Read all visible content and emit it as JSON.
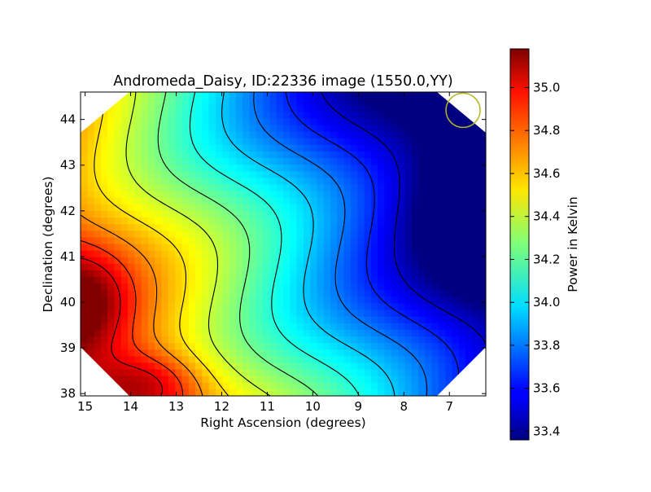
{
  "chart_data": {
    "type": "heatmap",
    "title": "Andromeda_Daisy, ID:22336 image (1550.0,YY)",
    "xlabel": "Right Ascension (degrees)",
    "ylabel": "Declination (degrees)",
    "xlim": [
      15.1,
      6.2
    ],
    "ylim": [
      37.95,
      44.6
    ],
    "x_ticks": [
      "15",
      "14",
      "13",
      "12",
      "11",
      "10",
      "9",
      "8",
      "7"
    ],
    "y_ticks": [
      "38",
      "39",
      "40",
      "41",
      "42",
      "43",
      "44"
    ],
    "colorbar": {
      "label": "Power in Kelvin",
      "range": [
        33.36,
        35.18
      ],
      "ticks": [
        "33.4",
        "33.6",
        "33.8",
        "34.0",
        "34.2",
        "34.4",
        "34.6",
        "34.8",
        "35.0"
      ],
      "colormap": "jet"
    },
    "field": {
      "description_of_gradient": "high in lower-left, low in upper-right",
      "max_region": {
        "ra": 13.6,
        "dec": 38.2,
        "value": 35.18
      },
      "secondary_max": {
        "ra": 15.0,
        "dec": 40.0,
        "value": 35.15
      },
      "min_region": {
        "ra": 6.4,
        "dec": 42.2,
        "value": 33.36
      }
    },
    "beam_marker": {
      "ra": 6.7,
      "dec": 44.2,
      "color": "#b5b520"
    },
    "contours": {
      "color": "#000000"
    }
  }
}
